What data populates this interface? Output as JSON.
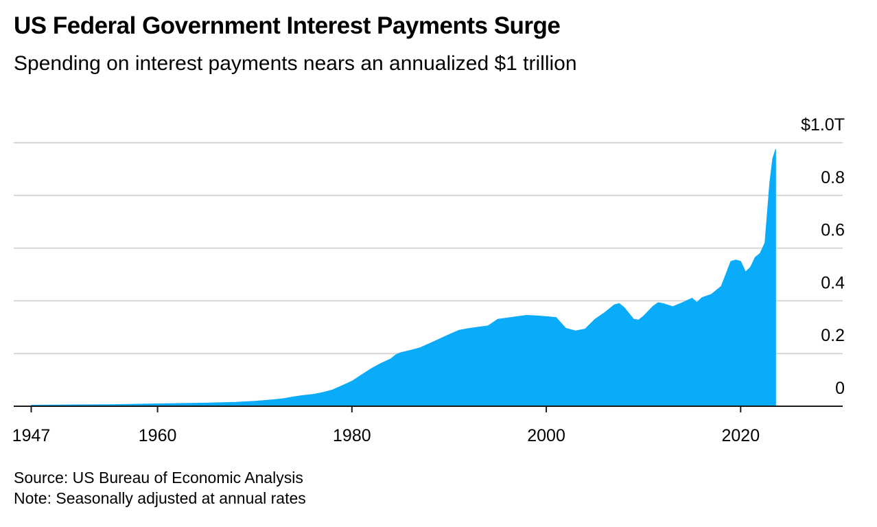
{
  "chart_data": {
    "type": "area",
    "title": "US Federal Government Interest Payments Surge",
    "subtitle": "Spending on interest payments nears an annualized $1 trillion",
    "xlabel": "",
    "ylabel": "",
    "x_ticks": [
      1947,
      1960,
      1980,
      2000,
      2020
    ],
    "x_tick_labels": [
      "1947",
      "1960",
      "1980",
      "2000",
      "2020"
    ],
    "y_ticks": [
      0,
      0.2,
      0.4,
      0.6,
      0.8,
      1.0
    ],
    "y_tick_labels": [
      "0",
      "0.2",
      "0.4",
      "0.6",
      "0.8",
      "$1.0T"
    ],
    "xlim": [
      1945.2,
      2030.5
    ],
    "ylim": [
      0,
      1.0
    ],
    "unit": "trillion USD, seasonally adjusted annual rate",
    "grid": true,
    "axis_side": "right",
    "color": "#0aabf8",
    "series": [
      {
        "x": [
          1947,
          1950,
          1955,
          1960,
          1965,
          1968,
          1970,
          1971,
          1972,
          1973,
          1974,
          1975,
          1976,
          1977,
          1978,
          1979,
          1980,
          1981,
          1982,
          1983,
          1984,
          1984.5,
          1985,
          1986,
          1987,
          1988,
          1989,
          1990,
          1991,
          1992,
          1993,
          1994,
          1995,
          1996,
          1997,
          1998,
          1999,
          2000,
          2001,
          2002,
          2003,
          2004,
          2005,
          2006,
          2007,
          2007.5,
          2008,
          2009,
          2009.5,
          2010,
          2011,
          2011.5,
          2012,
          2013,
          2014,
          2015,
          2015.5,
          2016,
          2017,
          2018,
          2019,
          2019.5,
          2020,
          2020.5,
          2021,
          2021.5,
          2022,
          2022.5,
          2023,
          2023.3,
          2023.6
        ],
        "values": [
          0.004,
          0.005,
          0.006,
          0.009,
          0.012,
          0.015,
          0.019,
          0.022,
          0.025,
          0.029,
          0.036,
          0.041,
          0.045,
          0.052,
          0.062,
          0.078,
          0.095,
          0.119,
          0.143,
          0.163,
          0.18,
          0.195,
          0.203,
          0.212,
          0.222,
          0.238,
          0.255,
          0.272,
          0.288,
          0.295,
          0.3,
          0.305,
          0.33,
          0.335,
          0.34,
          0.345,
          0.343,
          0.34,
          0.337,
          0.296,
          0.286,
          0.293,
          0.33,
          0.355,
          0.385,
          0.39,
          0.375,
          0.33,
          0.327,
          0.342,
          0.38,
          0.393,
          0.39,
          0.378,
          0.393,
          0.41,
          0.394,
          0.412,
          0.425,
          0.455,
          0.55,
          0.555,
          0.55,
          0.51,
          0.527,
          0.565,
          0.58,
          0.62,
          0.85,
          0.94,
          0.975
        ]
      }
    ]
  },
  "source": "Source: US Bureau of Economic Analysis",
  "note": "Note: Seasonally adjusted at annual rates"
}
